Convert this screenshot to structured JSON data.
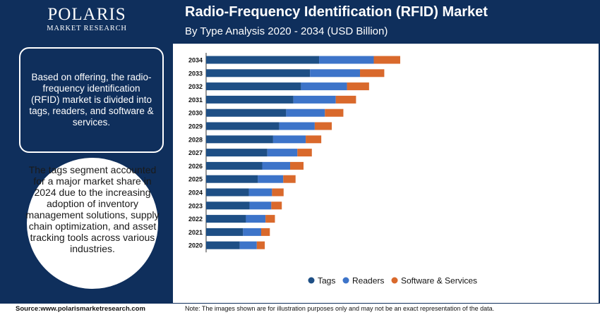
{
  "brand": {
    "name": "POLARIS",
    "tagline": "MARKET RESEARCH"
  },
  "header": {
    "title": "Radio-Frequency Identification (RFID) Market",
    "subtitle": "By Type Analysis 2020 - 2034 (USD Billion)"
  },
  "side": {
    "info_text": "Based on offering, the radio-frequency identification (RFID) market is divided into tags, readers, and software & services.",
    "highlight_text": "The tags segment accounted for a major market share in 2024 due to the increasing adoption of inventory management solutions, supply chain optimization, and asset tracking tools across various industries."
  },
  "footer": {
    "source": "Source:www.polarismarketresearch.com",
    "note": "Note: The images shown are for illustration purposes only and may not be an exact representation of the data."
  },
  "colors": {
    "navy": "#0f2f5c",
    "tags": "#1e4f85",
    "readers": "#3d74c9",
    "software": "#d9692c"
  },
  "chart_data": {
    "type": "bar",
    "orientation": "horizontal",
    "stacked": true,
    "categories": [
      "2034",
      "2033",
      "2032",
      "2031",
      "2030",
      "2029",
      "2028",
      "2027",
      "2026",
      "2025",
      "2024",
      "2023",
      "2022",
      "2021",
      "2020"
    ],
    "series": [
      {
        "name": "Tags",
        "color": "#1e4f85",
        "values": [
          31.2,
          28.7,
          26.2,
          24.1,
          22.1,
          20.2,
          18.5,
          16.9,
          15.5,
          14.3,
          11.8,
          12.0,
          11.0,
          10.2,
          9.3
        ]
      },
      {
        "name": "Readers",
        "color": "#3d74c9",
        "values": [
          15.1,
          13.8,
          12.7,
          11.7,
          10.7,
          9.8,
          9.0,
          8.3,
          7.7,
          7.0,
          6.4,
          6.0,
          5.4,
          5.0,
          4.7
        ]
      },
      {
        "name": "Software & Services",
        "color": "#d9692c",
        "values": [
          7.3,
          6.7,
          6.1,
          5.6,
          5.1,
          4.7,
          4.3,
          4.0,
          3.7,
          3.4,
          3.2,
          2.9,
          2.6,
          2.4,
          2.2
        ]
      }
    ],
    "legend_position": "bottom",
    "grid": false
  }
}
